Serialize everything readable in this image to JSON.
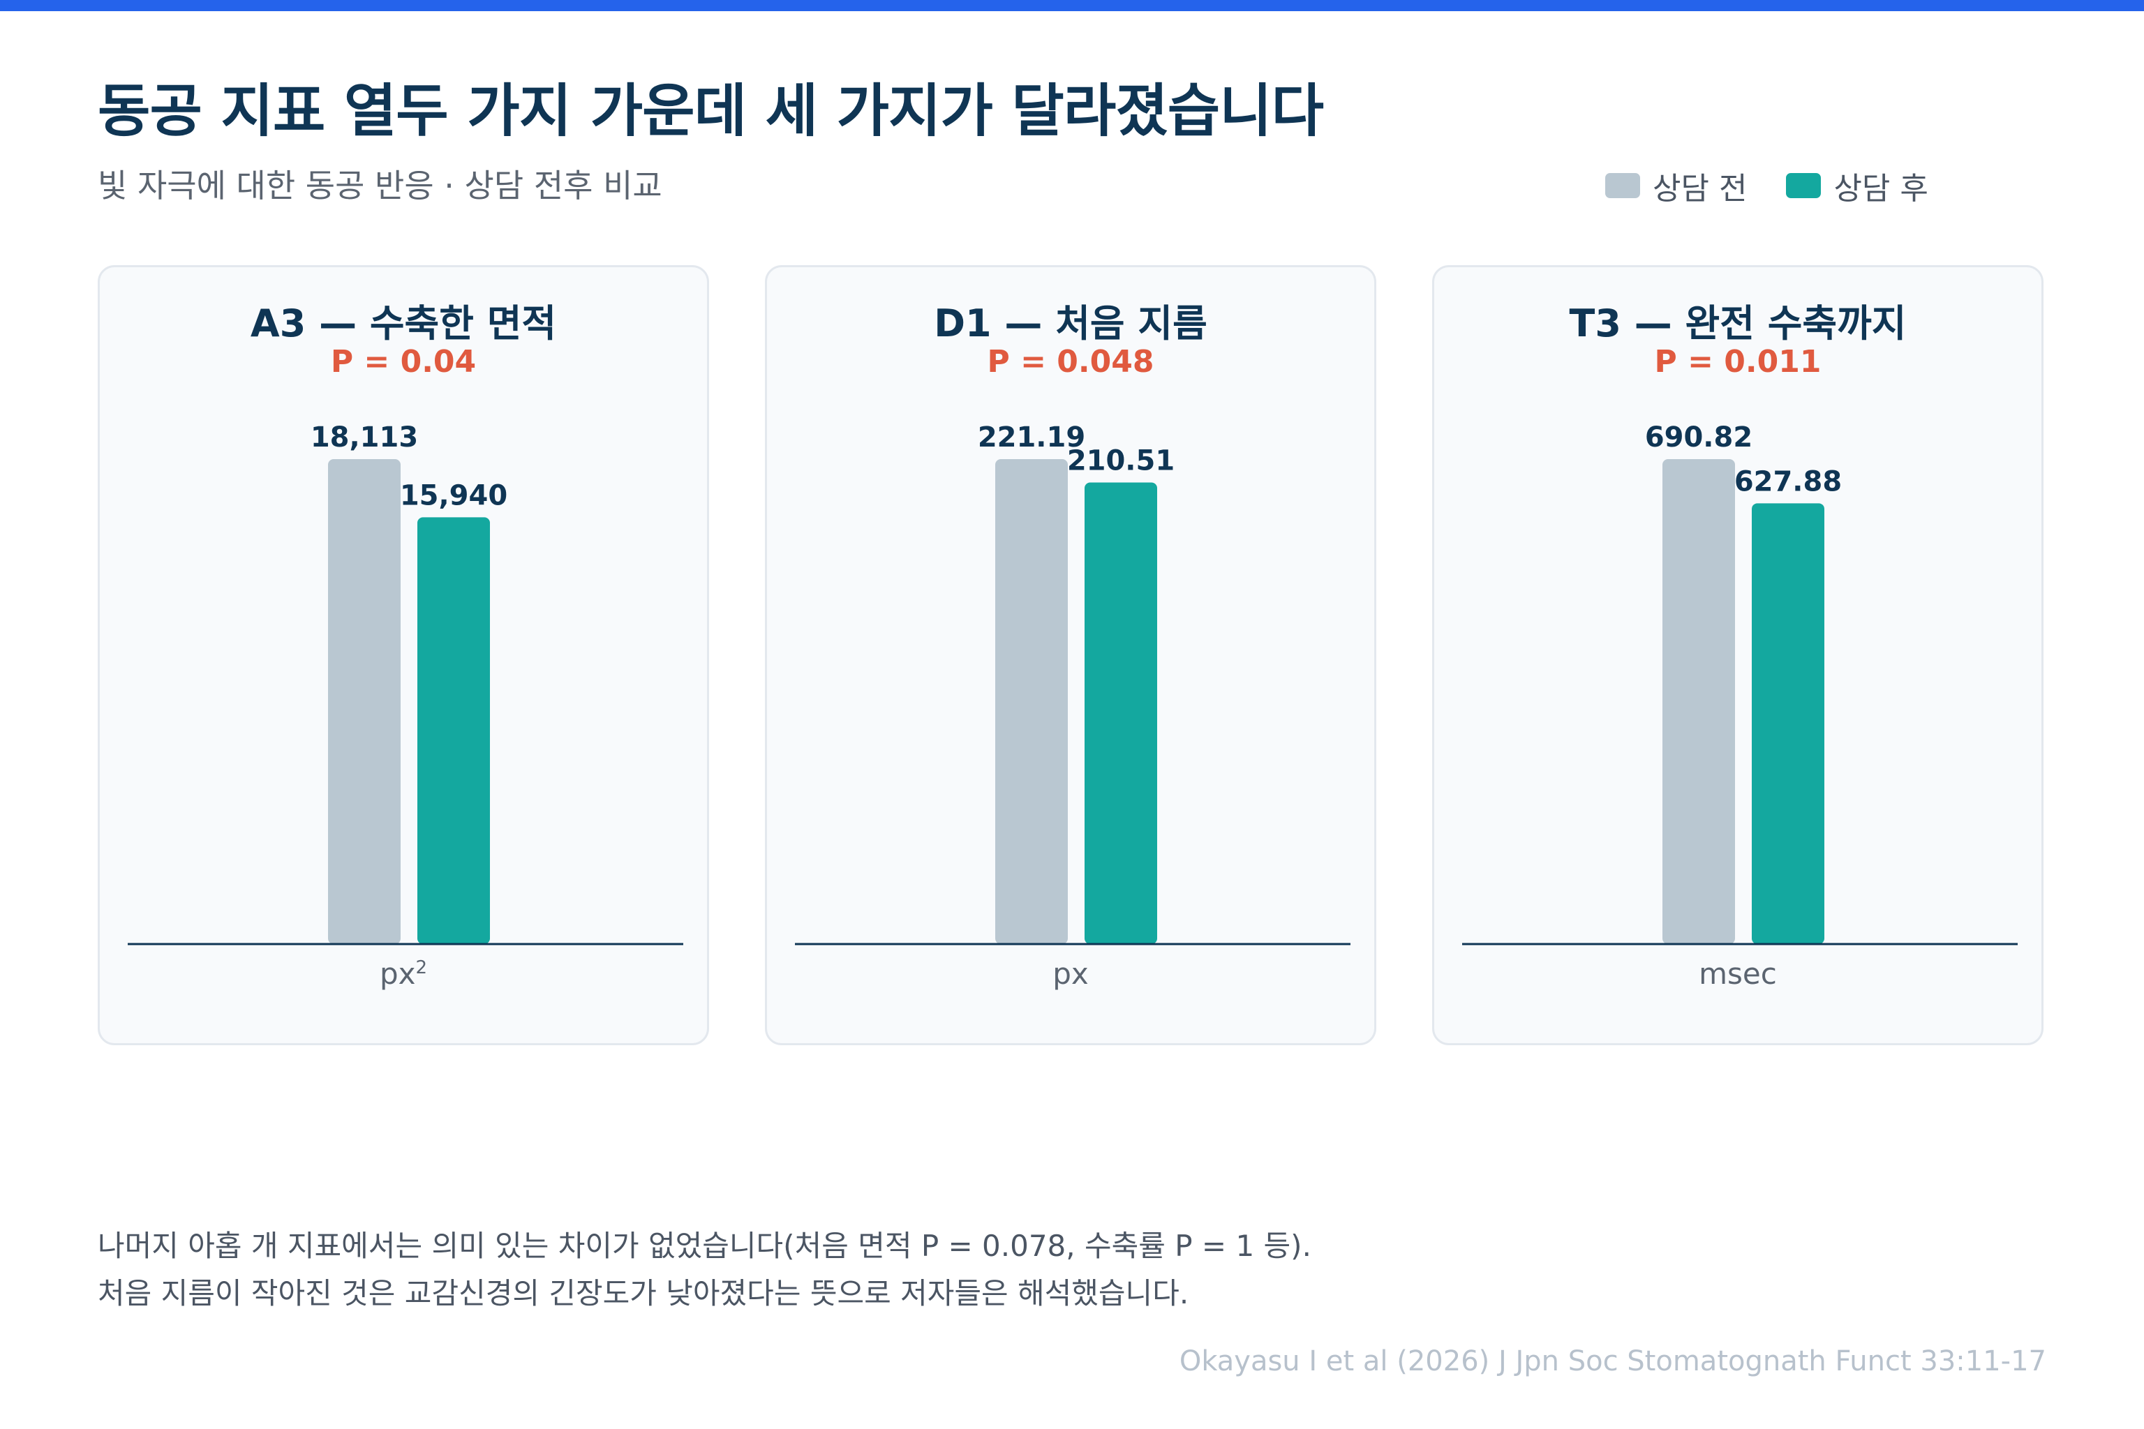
{
  "title": "동공 지표 열두 가지 가운데 세 가지가 달라졌습니다",
  "subtitle": "빛 자극에 대한 동공 반응 · 상담 전후 비교",
  "legend": [
    {
      "label": "상담 전",
      "color": "#b9c7d1"
    },
    {
      "label": "상담 후",
      "color": "#14a89f"
    }
  ],
  "chart_data": [
    {
      "type": "bar",
      "title": "A3 — 수축한 면적",
      "p_value": "P = 0.04",
      "unit_base": "px",
      "unit_sup": "2",
      "categories": [
        "상담 전",
        "상담 후"
      ],
      "values": [
        18113,
        15940
      ],
      "value_labels": [
        "18,113",
        "15,940"
      ],
      "colors": [
        "#b9c7d1",
        "#14a89f"
      ]
    },
    {
      "type": "bar",
      "title": "D1 — 처음 지름",
      "p_value": "P = 0.048",
      "unit_base": "px",
      "unit_sup": "",
      "categories": [
        "상담 전",
        "상담 후"
      ],
      "values": [
        221.19,
        210.51
      ],
      "value_labels": [
        "221.19",
        "210.51"
      ],
      "colors": [
        "#b9c7d1",
        "#14a89f"
      ]
    },
    {
      "type": "bar",
      "title": "T3 — 완전 수축까지",
      "p_value": "P = 0.011",
      "unit_base": "msec",
      "unit_sup": "",
      "categories": [
        "상담 전",
        "상담 후"
      ],
      "values": [
        690.82,
        627.88
      ],
      "value_labels": [
        "690.82",
        "627.88"
      ],
      "colors": [
        "#b9c7d1",
        "#14a89f"
      ]
    }
  ],
  "note": [
    "나머지 아홉 개 지표에서는 의미 있는 차이가 없었습니다(처음 면적 P = 0.078, 수축률 P = 1 등).",
    "처음 지름이 작아진 것은 교감신경의 긴장도가 낮아졌다는 뜻으로 저자들은 해석했습니다."
  ],
  "source": "Okayasu I et al (2026) J Jpn Soc Stomatognath Funct 33:11-17"
}
